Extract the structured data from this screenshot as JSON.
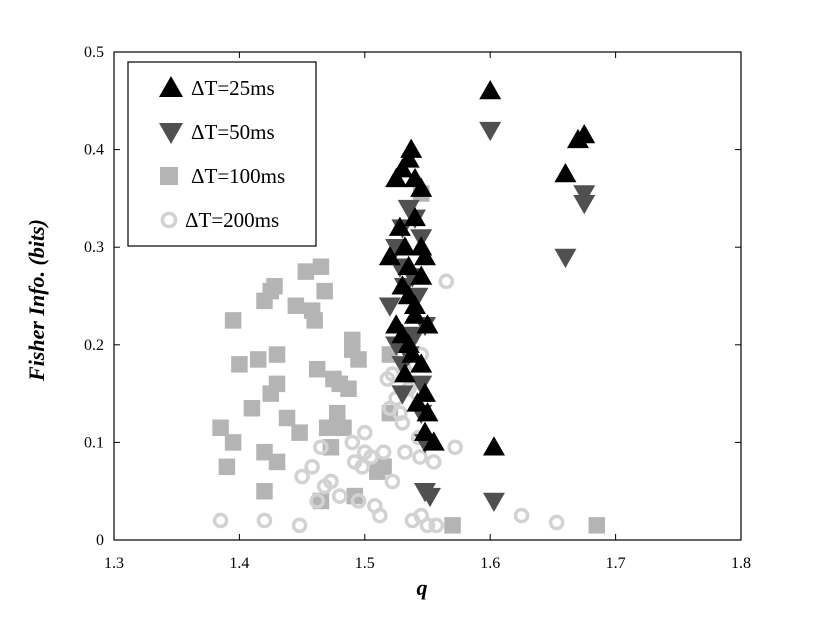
{
  "chart_data": {
    "type": "scatter",
    "xlabel": "q",
    "ylabel": "Fisher Info. (bits)",
    "xlim": [
      1.3,
      1.8
    ],
    "ylim": [
      0,
      0.5
    ],
    "x_ticks": [
      "1.3",
      "1.4",
      "1.5",
      "1.6",
      "1.7",
      "1.8"
    ],
    "y_ticks": [
      "0",
      "0.1",
      "0.2",
      "0.3",
      "0.4",
      "0.5"
    ],
    "grid": false,
    "legend_position": "top-left",
    "series": [
      {
        "name": "ΔT=25ms",
        "marker": "triangle-up",
        "color": "#000000",
        "points": [
          [
            1.52,
            0.29
          ],
          [
            1.525,
            0.37
          ],
          [
            1.53,
            0.38
          ],
          [
            1.535,
            0.39
          ],
          [
            1.537,
            0.4
          ],
          [
            1.54,
            0.37
          ],
          [
            1.545,
            0.36
          ],
          [
            1.528,
            0.32
          ],
          [
            1.532,
            0.3
          ],
          [
            1.535,
            0.28
          ],
          [
            1.54,
            0.33
          ],
          [
            1.545,
            0.3
          ],
          [
            1.53,
            0.26
          ],
          [
            1.535,
            0.25
          ],
          [
            1.54,
            0.24
          ],
          [
            1.545,
            0.27
          ],
          [
            1.548,
            0.29
          ],
          [
            1.525,
            0.22
          ],
          [
            1.53,
            0.21
          ],
          [
            1.535,
            0.2
          ],
          [
            1.54,
            0.23
          ],
          [
            1.545,
            0.18
          ],
          [
            1.55,
            0.22
          ],
          [
            1.532,
            0.17
          ],
          [
            1.538,
            0.19
          ],
          [
            1.548,
            0.15
          ],
          [
            1.542,
            0.14
          ],
          [
            1.55,
            0.13
          ],
          [
            1.548,
            0.11
          ],
          [
            1.555,
            0.1
          ],
          [
            1.6,
            0.46
          ],
          [
            1.603,
            0.095
          ],
          [
            1.66,
            0.375
          ],
          [
            1.675,
            0.415
          ],
          [
            1.67,
            0.41
          ]
        ]
      },
      {
        "name": "ΔT=50ms",
        "marker": "triangle-down",
        "color": "#505050",
        "points": [
          [
            1.52,
            0.24
          ],
          [
            1.525,
            0.3
          ],
          [
            1.53,
            0.32
          ],
          [
            1.535,
            0.34
          ],
          [
            1.54,
            0.33
          ],
          [
            1.545,
            0.31
          ],
          [
            1.528,
            0.28
          ],
          [
            1.532,
            0.26
          ],
          [
            1.538,
            0.27
          ],
          [
            1.542,
            0.25
          ],
          [
            1.548,
            0.22
          ],
          [
            1.525,
            0.2
          ],
          [
            1.53,
            0.18
          ],
          [
            1.535,
            0.19
          ],
          [
            1.54,
            0.21
          ],
          [
            1.545,
            0.16
          ],
          [
            1.53,
            0.15
          ],
          [
            1.545,
            0.13
          ],
          [
            1.548,
            0.1
          ],
          [
            1.548,
            0.05
          ],
          [
            1.552,
            0.045
          ],
          [
            1.6,
            0.42
          ],
          [
            1.603,
            0.04
          ],
          [
            1.66,
            0.29
          ],
          [
            1.675,
            0.355
          ],
          [
            1.675,
            0.345
          ]
        ]
      },
      {
        "name": "ΔT=100ms",
        "marker": "square",
        "color": "#b4b4b4",
        "points": [
          [
            1.385,
            0.115
          ],
          [
            1.39,
            0.075
          ],
          [
            1.395,
            0.1
          ],
          [
            1.395,
            0.225
          ],
          [
            1.4,
            0.18
          ],
          [
            1.41,
            0.135
          ],
          [
            1.415,
            0.185
          ],
          [
            1.42,
            0.245
          ],
          [
            1.42,
            0.09
          ],
          [
            1.42,
            0.05
          ],
          [
            1.425,
            0.255
          ],
          [
            1.428,
            0.26
          ],
          [
            1.425,
            0.15
          ],
          [
            1.43,
            0.19
          ],
          [
            1.43,
            0.16
          ],
          [
            1.43,
            0.08
          ],
          [
            1.438,
            0.125
          ],
          [
            1.445,
            0.24
          ],
          [
            1.448,
            0.11
          ],
          [
            1.453,
            0.275
          ],
          [
            1.458,
            0.235
          ],
          [
            1.46,
            0.225
          ],
          [
            1.465,
            0.28
          ],
          [
            1.462,
            0.175
          ],
          [
            1.468,
            0.255
          ],
          [
            1.465,
            0.04
          ],
          [
            1.47,
            0.115
          ],
          [
            1.473,
            0.095
          ],
          [
            1.475,
            0.165
          ],
          [
            1.478,
            0.13
          ],
          [
            1.48,
            0.16
          ],
          [
            1.483,
            0.115
          ],
          [
            1.487,
            0.155
          ],
          [
            1.49,
            0.205
          ],
          [
            1.49,
            0.195
          ],
          [
            1.492,
            0.045
          ],
          [
            1.495,
            0.185
          ],
          [
            1.51,
            0.07
          ],
          [
            1.515,
            0.075
          ],
          [
            1.52,
            0.13
          ],
          [
            1.52,
            0.19
          ],
          [
            1.545,
            0.355
          ],
          [
            1.57,
            0.015
          ],
          [
            1.685,
            0.015
          ]
        ]
      },
      {
        "name": "ΔT=200ms",
        "marker": "ring",
        "color": "#d2d2d2",
        "points": [
          [
            1.385,
            0.02
          ],
          [
            1.42,
            0.02
          ],
          [
            1.448,
            0.015
          ],
          [
            1.45,
            0.065
          ],
          [
            1.458,
            0.075
          ],
          [
            1.462,
            0.04
          ],
          [
            1.465,
            0.095
          ],
          [
            1.468,
            0.055
          ],
          [
            1.473,
            0.06
          ],
          [
            1.48,
            0.045
          ],
          [
            1.49,
            0.1
          ],
          [
            1.492,
            0.08
          ],
          [
            1.495,
            0.04
          ],
          [
            1.498,
            0.075
          ],
          [
            1.5,
            0.11
          ],
          [
            1.5,
            0.09
          ],
          [
            1.505,
            0.085
          ],
          [
            1.508,
            0.035
          ],
          [
            1.512,
            0.025
          ],
          [
            1.515,
            0.09
          ],
          [
            1.518,
            0.165
          ],
          [
            1.52,
            0.135
          ],
          [
            1.522,
            0.06
          ],
          [
            1.522,
            0.17
          ],
          [
            1.525,
            0.145
          ],
          [
            1.528,
            0.13
          ],
          [
            1.53,
            0.12
          ],
          [
            1.532,
            0.09
          ],
          [
            1.535,
            0.155
          ],
          [
            1.538,
            0.02
          ],
          [
            1.54,
            0.18
          ],
          [
            1.542,
            0.15
          ],
          [
            1.543,
            0.105
          ],
          [
            1.544,
            0.085
          ],
          [
            1.545,
            0.025
          ],
          [
            1.545,
            0.19
          ],
          [
            1.55,
            0.015
          ],
          [
            1.555,
            0.08
          ],
          [
            1.557,
            0.015
          ],
          [
            1.565,
            0.265
          ],
          [
            1.572,
            0.095
          ],
          [
            1.625,
            0.025
          ],
          [
            1.653,
            0.018
          ]
        ]
      }
    ]
  }
}
